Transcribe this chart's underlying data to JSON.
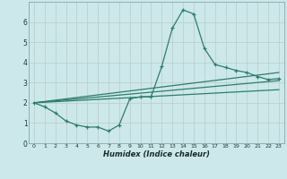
{
  "xlabel": "Humidex (Indice chaleur)",
  "x_values": [
    0,
    1,
    2,
    3,
    4,
    5,
    6,
    7,
    8,
    9,
    10,
    11,
    12,
    13,
    14,
    15,
    16,
    17,
    18,
    19,
    20,
    21,
    22,
    23
  ],
  "line1": [
    2.0,
    1.8,
    1.5,
    1.1,
    0.9,
    0.8,
    0.8,
    0.6,
    0.9,
    2.2,
    2.3,
    2.3,
    3.8,
    5.7,
    6.6,
    6.4,
    4.7,
    3.9,
    3.75,
    3.6,
    3.5,
    3.3,
    3.15,
    3.2
  ],
  "line2_points": [
    [
      0,
      2.0
    ],
    [
      23,
      3.5
    ]
  ],
  "line3_points": [
    [
      0,
      2.0
    ],
    [
      23,
      3.1
    ]
  ],
  "line4_points": [
    [
      0,
      2.0
    ],
    [
      23,
      2.65
    ]
  ],
  "line_color": "#2e7d6e",
  "bg_color": "#cce8ea",
  "grid_color": "#b8cccc",
  "ylim": [
    0,
    7
  ],
  "xlim": [
    -0.5,
    23.5
  ],
  "yticks": [
    0,
    1,
    2,
    3,
    4,
    5,
    6
  ],
  "xticks": [
    0,
    1,
    2,
    3,
    4,
    5,
    6,
    7,
    8,
    9,
    10,
    11,
    12,
    13,
    14,
    15,
    16,
    17,
    18,
    19,
    20,
    21,
    22,
    23
  ]
}
